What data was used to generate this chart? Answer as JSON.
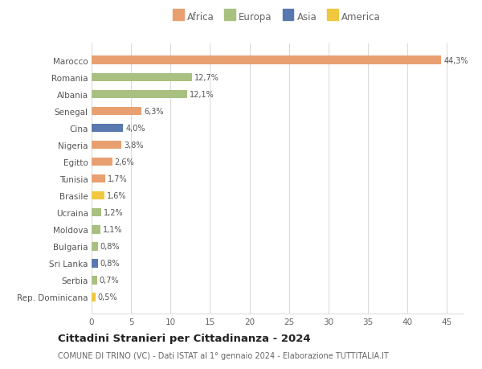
{
  "categories": [
    "Rep. Dominicana",
    "Serbia",
    "Sri Lanka",
    "Bulgaria",
    "Moldova",
    "Ucraina",
    "Brasile",
    "Tunisia",
    "Egitto",
    "Nigeria",
    "Cina",
    "Senegal",
    "Albania",
    "Romania",
    "Marocco"
  ],
  "values": [
    0.5,
    0.7,
    0.8,
    0.8,
    1.1,
    1.2,
    1.6,
    1.7,
    2.6,
    3.8,
    4.0,
    6.3,
    12.1,
    12.7,
    44.3
  ],
  "colors": [
    "#f0c840",
    "#a8c080",
    "#5878b0",
    "#a8c080",
    "#a8c080",
    "#a8c080",
    "#f0c840",
    "#e8a070",
    "#e8a070",
    "#e8a070",
    "#5878b0",
    "#e8a070",
    "#a8c080",
    "#a8c080",
    "#e8a070"
  ],
  "labels": [
    "0,5%",
    "0,7%",
    "0,8%",
    "0,8%",
    "1,1%",
    "1,2%",
    "1,6%",
    "1,7%",
    "2,6%",
    "3,8%",
    "4,0%",
    "6,3%",
    "12,1%",
    "12,7%",
    "44,3%"
  ],
  "legend_labels": [
    "Africa",
    "Europa",
    "Asia",
    "America"
  ],
  "legend_colors": [
    "#e8a070",
    "#a8c080",
    "#5878b0",
    "#f0c840"
  ],
  "title": "Cittadini Stranieri per Cittadinanza - 2024",
  "subtitle": "COMUNE DI TRINO (VC) - Dati ISTAT al 1° gennaio 2024 - Elaborazione TUTTITALIA.IT",
  "xlim": [
    0,
    47
  ],
  "xticks": [
    0,
    5,
    10,
    15,
    20,
    25,
    30,
    35,
    40,
    45
  ],
  "background_color": "#ffffff",
  "grid_color": "#d8d8d8",
  "bar_height": 0.5
}
